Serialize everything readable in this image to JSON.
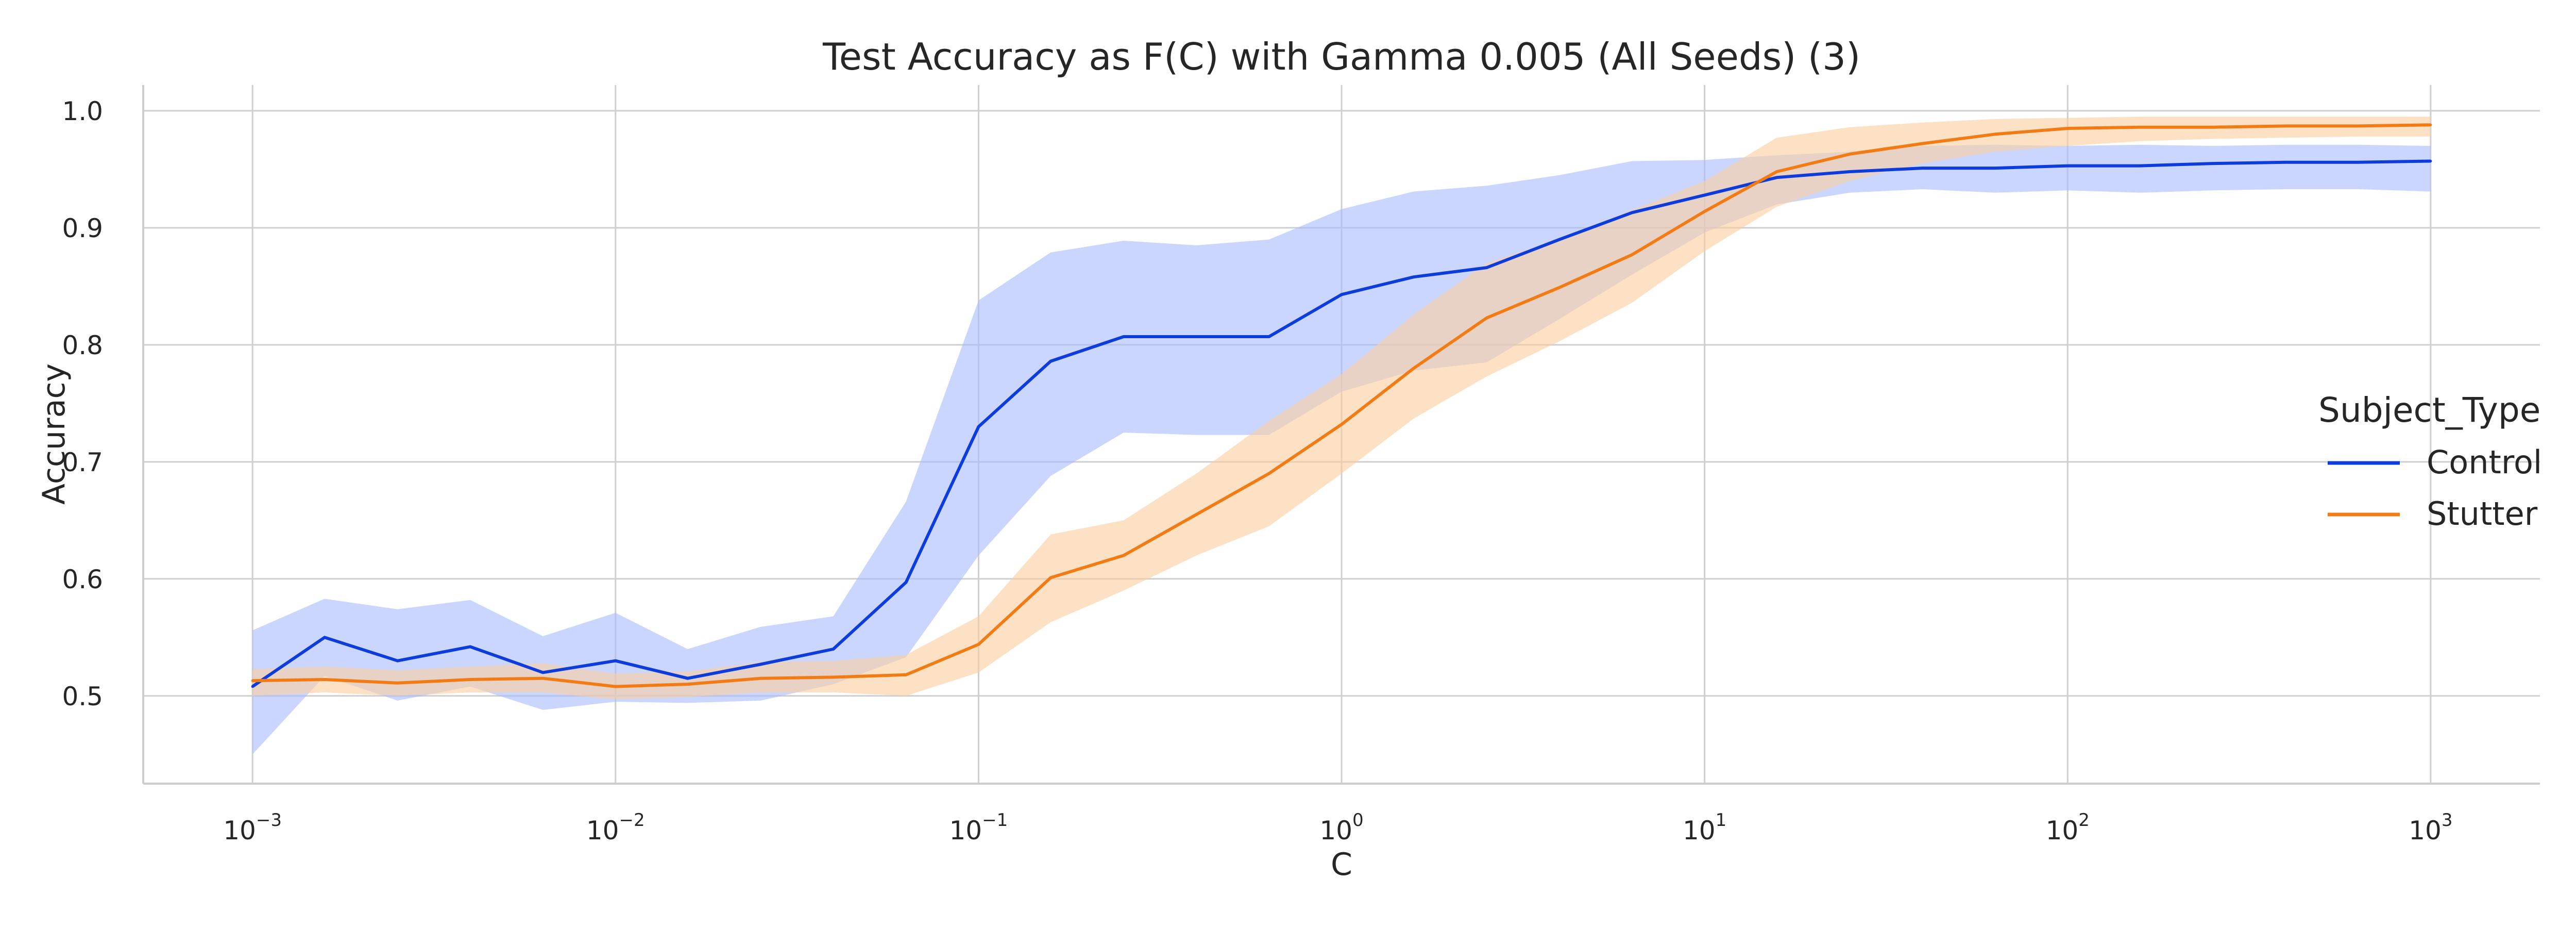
{
  "chart_data": {
    "type": "line",
    "title": "Test Accuracy as F(C) with Gamma 0.005 (All Seeds) (3)",
    "xlabel": "C",
    "ylabel": "Accuracy",
    "xscale": "log",
    "xlim": [
      0.0005,
      2000
    ],
    "ylim": [
      0.425,
      1.022
    ],
    "grid": true,
    "xticks": [
      {
        "value": 0.001,
        "base": "10",
        "exp": "−3"
      },
      {
        "value": 0.01,
        "base": "10",
        "exp": "−2"
      },
      {
        "value": 0.1,
        "base": "10",
        "exp": "−1"
      },
      {
        "value": 1,
        "base": "10",
        "exp": "0"
      },
      {
        "value": 10,
        "base": "10",
        "exp": "1"
      },
      {
        "value": 100,
        "base": "10",
        "exp": "2"
      },
      {
        "value": 1000,
        "base": "10",
        "exp": "3"
      }
    ],
    "yticks": [
      {
        "value": 0.5,
        "label": "0.5"
      },
      {
        "value": 0.6,
        "label": "0.6"
      },
      {
        "value": 0.7,
        "label": "0.7"
      },
      {
        "value": 0.8,
        "label": "0.8"
      },
      {
        "value": 0.9,
        "label": "0.9"
      },
      {
        "value": 1.0,
        "label": "1.0"
      }
    ],
    "legend": {
      "title": "Subject_Type",
      "position": "right"
    },
    "x": [
      0.001,
      0.00158,
      0.00251,
      0.00398,
      0.00631,
      0.01,
      0.0158,
      0.0251,
      0.0398,
      0.0631,
      0.1,
      0.158,
      0.251,
      0.398,
      0.631,
      1,
      1.58,
      2.51,
      3.98,
      6.31,
      10,
      15.8,
      25.1,
      39.8,
      63.1,
      100,
      158,
      251,
      398,
      631,
      1000
    ],
    "series": [
      {
        "name": "Control",
        "color": "#0c3cdc",
        "band_color": "#a8bbff",
        "values": [
          0.508,
          0.55,
          0.53,
          0.542,
          0.52,
          0.53,
          0.515,
          0.527,
          0.54,
          0.597,
          0.73,
          0.786,
          0.807,
          0.807,
          0.807,
          0.843,
          0.858,
          0.866,
          0.89,
          0.913,
          0.928,
          0.943,
          0.948,
          0.951,
          0.951,
          0.953,
          0.953,
          0.955,
          0.956,
          0.956,
          0.957
        ],
        "upper": [
          0.556,
          0.583,
          0.574,
          0.582,
          0.551,
          0.571,
          0.54,
          0.559,
          0.568,
          0.666,
          0.838,
          0.879,
          0.889,
          0.885,
          0.89,
          0.916,
          0.931,
          0.936,
          0.945,
          0.957,
          0.958,
          0.962,
          0.965,
          0.97,
          0.971,
          0.97,
          0.971,
          0.97,
          0.971,
          0.971,
          0.97
        ],
        "lower": [
          0.45,
          0.517,
          0.496,
          0.508,
          0.488,
          0.495,
          0.494,
          0.496,
          0.51,
          0.533,
          0.62,
          0.688,
          0.725,
          0.723,
          0.723,
          0.76,
          0.778,
          0.785,
          0.822,
          0.86,
          0.896,
          0.92,
          0.93,
          0.933,
          0.93,
          0.932,
          0.93,
          0.932,
          0.933,
          0.933,
          0.931
        ]
      },
      {
        "name": "Stutter",
        "color": "#f27b14",
        "band_color": "#fccd9f",
        "values": [
          0.513,
          0.514,
          0.511,
          0.514,
          0.515,
          0.508,
          0.51,
          0.515,
          0.516,
          0.518,
          0.544,
          0.601,
          0.62,
          0.655,
          0.69,
          0.732,
          0.78,
          0.823,
          0.849,
          0.877,
          0.914,
          0.948,
          0.963,
          0.972,
          0.98,
          0.985,
          0.986,
          0.986,
          0.987,
          0.987,
          0.988
        ],
        "upper": [
          0.523,
          0.525,
          0.522,
          0.525,
          0.528,
          0.519,
          0.521,
          0.529,
          0.53,
          0.535,
          0.568,
          0.638,
          0.65,
          0.69,
          0.735,
          0.775,
          0.826,
          0.87,
          0.89,
          0.915,
          0.94,
          0.977,
          0.986,
          0.99,
          0.993,
          0.994,
          0.995,
          0.995,
          0.995,
          0.995,
          0.995
        ],
        "lower": [
          0.5,
          0.503,
          0.5,
          0.503,
          0.503,
          0.497,
          0.499,
          0.503,
          0.503,
          0.5,
          0.52,
          0.563,
          0.59,
          0.62,
          0.645,
          0.69,
          0.737,
          0.773,
          0.803,
          0.836,
          0.88,
          0.918,
          0.94,
          0.955,
          0.965,
          0.97,
          0.974,
          0.976,
          0.977,
          0.978,
          0.978
        ]
      }
    ]
  }
}
